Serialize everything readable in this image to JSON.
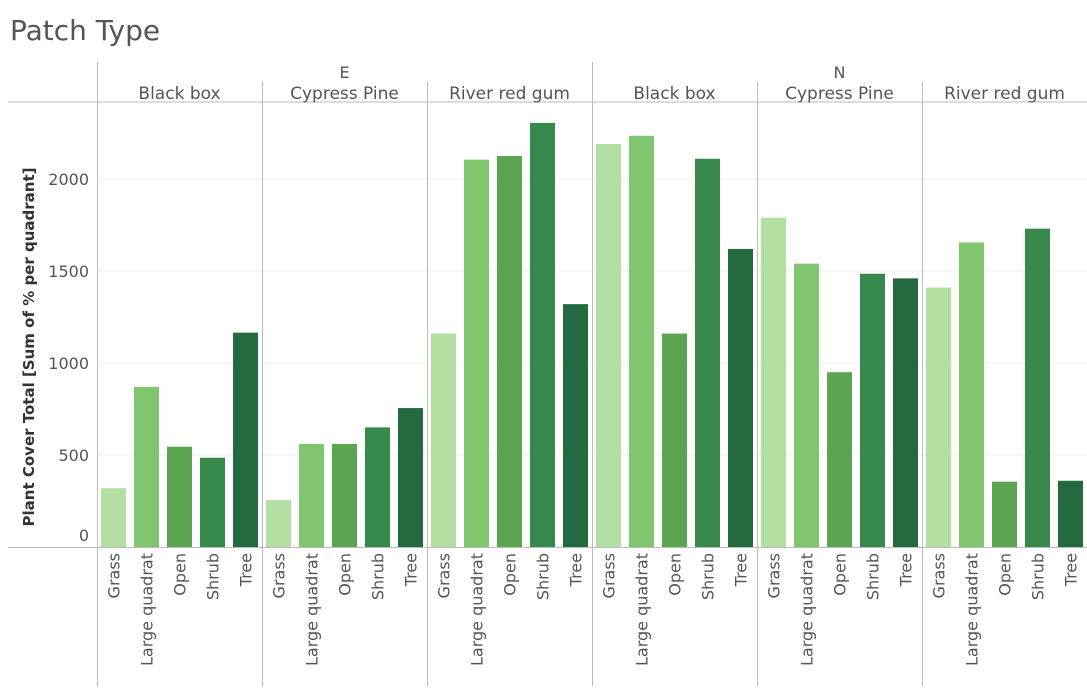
{
  "title": "Patch Type",
  "colors": {
    "Grass": "#b3dfa3",
    "Large quadrat": "#80c66f",
    "Open": "#5ba550",
    "Shrub": "#388a4c",
    "Tree": "#236a3f",
    "axis": "#bbbbbb",
    "grid": "#ececec",
    "text": "#555555"
  },
  "chart_data": {
    "type": "bar",
    "title": "Patch Type",
    "ylabel": "Plant Cover Total [Sum of % per quadrant]",
    "xlabel": "",
    "ylim": [
      0,
      2400
    ],
    "yticks": [
      0,
      500,
      1000,
      1500,
      2000
    ],
    "grid": true,
    "categories": [
      "Grass",
      "Large quadrat",
      "Open",
      "Shrub",
      "Tree"
    ],
    "groups": [
      {
        "label": "E",
        "panels": [
          {
            "label": "Black box",
            "values": [
              320,
              870,
              545,
              485,
              1165
            ]
          },
          {
            "label": "Cypress Pine",
            "values": [
              255,
              560,
              560,
              650,
              755
            ]
          },
          {
            "label": "River red gum",
            "values": [
              1160,
              2105,
              2125,
              2305,
              1320
            ]
          }
        ]
      },
      {
        "label": "N",
        "panels": [
          {
            "label": "Black box",
            "values": [
              2190,
              2235,
              1160,
              2110,
              1620
            ]
          },
          {
            "label": "Cypress Pine",
            "values": [
              1790,
              1540,
              950,
              1485,
              1460
            ]
          },
          {
            "label": "River red gum",
            "values": [
              1410,
              1655,
              355,
              1730,
              360
            ]
          }
        ]
      }
    ]
  }
}
